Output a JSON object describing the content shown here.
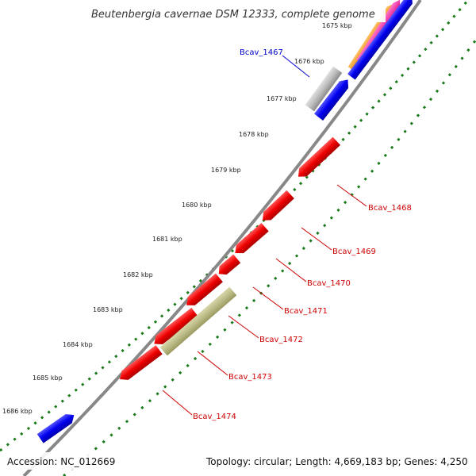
{
  "title": "Beutenbergia cavernae DSM 12333, complete genome",
  "footer": {
    "accession": "Accession: NC_012669",
    "summary": "Topology: circular; Length: 4,669,183 bp; Genes: 4,250"
  },
  "kbp_ticks": [
    "1675 kbp",
    "1676 kbp",
    "1677 kbp",
    "1678 kbp",
    "1679 kbp",
    "1680 kbp",
    "1681 kbp",
    "1682 kbp",
    "1683 kbp",
    "1684 kbp",
    "1685 kbp",
    "1686 kbp"
  ],
  "gene_labels": [
    {
      "text": "Bcav_1467",
      "color": "#0000cc"
    },
    {
      "text": "Bcav_1468",
      "color": "#cc0000"
    },
    {
      "text": "Bcav_1469",
      "color": "#cc0000"
    },
    {
      "text": "Bcav_1470",
      "color": "#cc0000"
    },
    {
      "text": "Bcav_1471",
      "color": "#cc0000"
    },
    {
      "text": "Bcav_1472",
      "color": "#cc0000"
    },
    {
      "text": "Bcav_1473",
      "color": "#cc0000"
    },
    {
      "text": "Bcav_1474",
      "color": "#cc0000"
    }
  ],
  "colors": {
    "reverse_gene": "#ee0000",
    "forward_gene": "#0000ee",
    "other_gene": "#bbbb88",
    "grey_gene": "#b8b8b8",
    "orange_gene": "#ff9900",
    "pink_gene": "#ff33aa",
    "backbone": "#8a8a8a",
    "tick_dots": "#1a7a1a"
  }
}
